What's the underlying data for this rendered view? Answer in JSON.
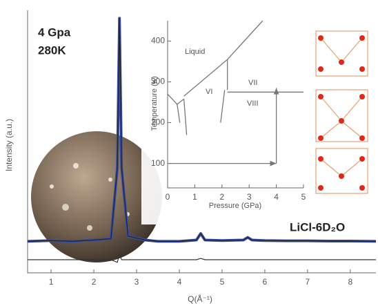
{
  "chart_data": [
    {
      "type": "line",
      "xlabel": "Q(Å⁻¹)",
      "ylabel": "Intensity (a.u.)",
      "annotations": [
        "4 Gpa",
        "280K",
        "LiCl-6D₂O"
      ],
      "x": [
        0.45,
        1,
        1.5,
        2,
        2.4,
        2.55,
        2.6,
        2.65,
        2.8,
        3.2,
        3.5,
        4,
        4.4,
        4.5,
        4.6,
        5,
        5.5,
        5.6,
        5.7,
        6,
        6.5,
        7,
        7.5,
        8,
        8.6
      ],
      "series": [
        {
          "color": "#3a4fa0",
          "values": [
            12,
            12.3,
            12,
            12.5,
            13,
            40,
            97,
            40,
            14,
            12.5,
            12,
            12,
            12.5,
            15,
            12.5,
            12.3,
            12.5,
            13.5,
            12.5,
            12.3,
            12.2,
            12.2,
            12.1,
            12.1,
            12
          ]
        },
        {
          "color": "#222222",
          "values": [
            12,
            12.3,
            12,
            12.5,
            13,
            40,
            97,
            40,
            14,
            12.5,
            12,
            12,
            12.5,
            15,
            12.5,
            12.3,
            12.5,
            13.5,
            12.5,
            12.3,
            12.2,
            12.2,
            12.1,
            12.1,
            12
          ]
        },
        {
          "color": "#333333",
          "values": [
            5,
            5,
            5,
            5,
            5,
            4,
            7,
            5,
            5,
            5,
            5,
            5,
            5,
            5.5,
            5,
            5,
            5,
            5,
            5,
            5,
            5,
            5,
            5,
            5,
            5
          ]
        }
      ],
      "xlim": [
        0.45,
        8.6
      ],
      "xticks": [
        1,
        2,
        3,
        4,
        5,
        6,
        7,
        8
      ],
      "ylim": [
        0,
        100
      ]
    },
    {
      "type": "line",
      "xlabel": "Pressure (GPa)",
      "ylabel": "Temperature (K)",
      "annotations": [
        "Liquid",
        "VI",
        "VII",
        "VIII"
      ],
      "series": [
        {
          "color": "#777777",
          "x": [
            0.6,
            2.2,
            3.5
          ],
          "values": [
            265,
            355,
            450
          ]
        },
        {
          "color": "#777777",
          "x": [
            0,
            0.35,
            0.6
          ],
          "values": [
            270,
            245,
            258
          ]
        },
        {
          "color": "#777777",
          "x": [
            0.35,
            0.45
          ],
          "values": [
            245,
            200
          ]
        },
        {
          "color": "#777777",
          "x": [
            0.6,
            0.7
          ],
          "values": [
            258,
            170
          ]
        },
        {
          "color": "#777777",
          "x": [
            2.2,
            2.2
          ],
          "values": [
            355,
            280
          ]
        },
        {
          "color": "#777777",
          "x": [
            2.1,
            1.95
          ],
          "values": [
            280,
            200
          ]
        },
        {
          "color": "#777777",
          "x": [
            2.2,
            5
          ],
          "values": [
            275,
            275
          ]
        },
        {
          "color": "#777777",
          "x": [
            0,
            4
          ],
          "values": [
            100,
            100
          ],
          "arrow": true
        },
        {
          "color": "#777777",
          "x": [
            4,
            4
          ],
          "values": [
            100,
            285
          ],
          "arrow": true
        }
      ],
      "xlim": [
        0,
        5
      ],
      "xticks": [
        0,
        1,
        2,
        3,
        4,
        5
      ],
      "ylim": [
        40,
        450
      ],
      "yticks": [
        100,
        200,
        300,
        400
      ]
    }
  ]
}
